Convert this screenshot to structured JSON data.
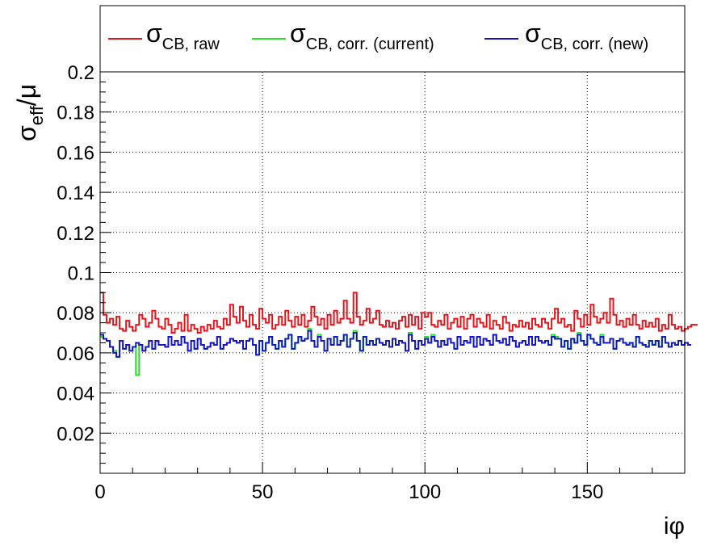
{
  "chart_data": {
    "type": "line",
    "style": "step",
    "xlabel": "iφ",
    "ylabel_main": "σ",
    "ylabel_sub": "eff",
    "ylabel_tail": "/μ",
    "xlim": [
      0,
      180
    ],
    "ylim": [
      0,
      0.2
    ],
    "x_ticks": [
      0,
      50,
      100,
      150
    ],
    "y_ticks": [
      0.02,
      0.04,
      0.06,
      0.08,
      0.1,
      0.12,
      0.14,
      0.16,
      0.18,
      0.2
    ],
    "x_tick_labels": [
      "0",
      "50",
      "100",
      "150"
    ],
    "y_tick_labels": [
      "0.02",
      "0.04",
      "0.06",
      "0.08",
      "0.1",
      "0.12",
      "0.14",
      "0.16",
      "0.18",
      "0.2"
    ],
    "grid": true,
    "legend_placement": "top",
    "bin_width": 1,
    "series": [
      {
        "name": "σ",
        "subscript": "CB, raw",
        "color": "#e8141a",
        "values": [
          0.09,
          0.079,
          0.075,
          0.077,
          0.074,
          0.078,
          0.072,
          0.071,
          0.076,
          0.073,
          0.071,
          0.074,
          0.079,
          0.077,
          0.073,
          0.075,
          0.081,
          0.077,
          0.073,
          0.072,
          0.077,
          0.074,
          0.07,
          0.072,
          0.075,
          0.071,
          0.079,
          0.071,
          0.074,
          0.072,
          0.07,
          0.073,
          0.071,
          0.074,
          0.072,
          0.076,
          0.073,
          0.072,
          0.077,
          0.074,
          0.084,
          0.078,
          0.075,
          0.083,
          0.076,
          0.073,
          0.079,
          0.074,
          0.072,
          0.082,
          0.077,
          0.075,
          0.079,
          0.072,
          0.074,
          0.078,
          0.074,
          0.081,
          0.076,
          0.073,
          0.078,
          0.074,
          0.079,
          0.073,
          0.076,
          0.083,
          0.078,
          0.074,
          0.077,
          0.072,
          0.079,
          0.074,
          0.081,
          0.075,
          0.077,
          0.086,
          0.077,
          0.075,
          0.09,
          0.078,
          0.074,
          0.076,
          0.082,
          0.075,
          0.077,
          0.081,
          0.074,
          0.073,
          0.076,
          0.073,
          0.075,
          0.072,
          0.076,
          0.078,
          0.073,
          0.079,
          0.074,
          0.078,
          0.072,
          0.08,
          0.078,
          0.08,
          0.074,
          0.073,
          0.076,
          0.074,
          0.079,
          0.072,
          0.075,
          0.077,
          0.073,
          0.078,
          0.072,
          0.077,
          0.079,
          0.073,
          0.077,
          0.075,
          0.073,
          0.079,
          0.072,
          0.076,
          0.074,
          0.072,
          0.078,
          0.075,
          0.071,
          0.074,
          0.073,
          0.076,
          0.073,
          0.075,
          0.072,
          0.077,
          0.074,
          0.073,
          0.077,
          0.075,
          0.072,
          0.077,
          0.082,
          0.075,
          0.077,
          0.073,
          0.074,
          0.071,
          0.081,
          0.077,
          0.073,
          0.079,
          0.074,
          0.084,
          0.078,
          0.075,
          0.077,
          0.08,
          0.075,
          0.087,
          0.079,
          0.074,
          0.076,
          0.073,
          0.077,
          0.074,
          0.079,
          0.074,
          0.072,
          0.076,
          0.073,
          0.075,
          0.073,
          0.077,
          0.071,
          0.074,
          0.072,
          0.079,
          0.074,
          0.072,
          0.073,
          0.071,
          0.072,
          0.073,
          0.074,
          0.074
        ]
      },
      {
        "name": "σ",
        "subscript": "CB, corr. (current)",
        "color": "#22e622",
        "values": [
          0.068,
          0.067,
          0.066,
          0.063,
          0.061,
          0.058,
          0.066,
          0.062,
          0.064,
          0.061,
          0.063,
          0.049,
          0.064,
          0.061,
          0.063,
          0.066,
          0.062,
          0.066,
          0.064,
          0.064,
          0.063,
          0.068,
          0.064,
          0.066,
          0.064,
          0.068,
          0.065,
          0.061,
          0.066,
          0.062,
          0.067,
          0.064,
          0.062,
          0.063,
          0.065,
          0.064,
          0.068,
          0.062,
          0.064,
          0.065,
          0.067,
          0.066,
          0.065,
          0.066,
          0.062,
          0.066,
          0.067,
          0.064,
          0.059,
          0.066,
          0.061,
          0.065,
          0.068,
          0.064,
          0.062,
          0.066,
          0.063,
          0.067,
          0.069,
          0.062,
          0.065,
          0.068,
          0.066,
          0.067,
          0.072,
          0.066,
          0.063,
          0.069,
          0.066,
          0.061,
          0.067,
          0.064,
          0.068,
          0.064,
          0.066,
          0.069,
          0.063,
          0.067,
          0.071,
          0.066,
          0.061,
          0.068,
          0.064,
          0.066,
          0.064,
          0.067,
          0.065,
          0.064,
          0.066,
          0.063,
          0.067,
          0.064,
          0.066,
          0.065,
          0.061,
          0.07,
          0.066,
          0.062,
          0.066,
          0.064,
          0.068,
          0.065,
          0.069,
          0.066,
          0.063,
          0.066,
          0.064,
          0.067,
          0.065,
          0.062,
          0.068,
          0.064,
          0.066,
          0.065,
          0.068,
          0.063,
          0.068,
          0.064,
          0.067,
          0.066,
          0.064,
          0.069,
          0.066,
          0.065,
          0.067,
          0.064,
          0.068,
          0.066,
          0.063,
          0.065,
          0.066,
          0.064,
          0.068,
          0.064,
          0.068,
          0.066,
          0.065,
          0.066,
          0.064,
          0.069,
          0.068,
          0.067,
          0.063,
          0.066,
          0.062,
          0.067,
          0.065,
          0.07,
          0.066,
          0.064,
          0.069,
          0.067,
          0.065,
          0.064,
          0.069,
          0.065,
          0.065,
          0.067,
          0.062,
          0.066,
          0.067,
          0.065,
          0.064,
          0.065,
          0.063,
          0.068,
          0.065,
          0.064,
          0.063,
          0.066,
          0.064,
          0.066,
          0.063,
          0.068,
          0.065,
          0.063,
          0.065,
          0.064,
          0.066,
          0.064,
          0.065,
          0.064
        ]
      },
      {
        "name": "σ",
        "subscript": "CB, corr. (new)",
        "color": "#1414c8",
        "values": [
          0.069,
          0.067,
          0.066,
          0.063,
          0.06,
          0.058,
          0.066,
          0.062,
          0.064,
          0.061,
          0.063,
          0.065,
          0.064,
          0.061,
          0.063,
          0.066,
          0.062,
          0.066,
          0.064,
          0.064,
          0.063,
          0.068,
          0.064,
          0.066,
          0.064,
          0.068,
          0.065,
          0.061,
          0.066,
          0.062,
          0.067,
          0.064,
          0.062,
          0.063,
          0.065,
          0.064,
          0.068,
          0.062,
          0.064,
          0.065,
          0.067,
          0.066,
          0.065,
          0.066,
          0.062,
          0.066,
          0.067,
          0.064,
          0.059,
          0.066,
          0.061,
          0.065,
          0.068,
          0.064,
          0.062,
          0.066,
          0.063,
          0.067,
          0.069,
          0.062,
          0.065,
          0.068,
          0.066,
          0.067,
          0.071,
          0.066,
          0.063,
          0.068,
          0.066,
          0.061,
          0.067,
          0.064,
          0.068,
          0.064,
          0.066,
          0.069,
          0.063,
          0.067,
          0.07,
          0.066,
          0.061,
          0.068,
          0.064,
          0.066,
          0.064,
          0.067,
          0.065,
          0.064,
          0.066,
          0.063,
          0.067,
          0.064,
          0.066,
          0.065,
          0.061,
          0.069,
          0.066,
          0.062,
          0.066,
          0.064,
          0.067,
          0.065,
          0.068,
          0.066,
          0.063,
          0.066,
          0.064,
          0.067,
          0.065,
          0.062,
          0.068,
          0.064,
          0.066,
          0.065,
          0.068,
          0.063,
          0.068,
          0.064,
          0.067,
          0.066,
          0.064,
          0.069,
          0.066,
          0.065,
          0.067,
          0.064,
          0.068,
          0.066,
          0.063,
          0.065,
          0.066,
          0.064,
          0.068,
          0.064,
          0.068,
          0.066,
          0.065,
          0.066,
          0.064,
          0.068,
          0.067,
          0.067,
          0.063,
          0.066,
          0.062,
          0.067,
          0.065,
          0.069,
          0.066,
          0.064,
          0.069,
          0.067,
          0.065,
          0.064,
          0.068,
          0.065,
          0.065,
          0.067,
          0.062,
          0.066,
          0.067,
          0.065,
          0.064,
          0.065,
          0.063,
          0.068,
          0.065,
          0.064,
          0.063,
          0.066,
          0.064,
          0.066,
          0.063,
          0.068,
          0.065,
          0.063,
          0.065,
          0.064,
          0.066,
          0.064,
          0.065,
          0.064
        ]
      }
    ]
  }
}
